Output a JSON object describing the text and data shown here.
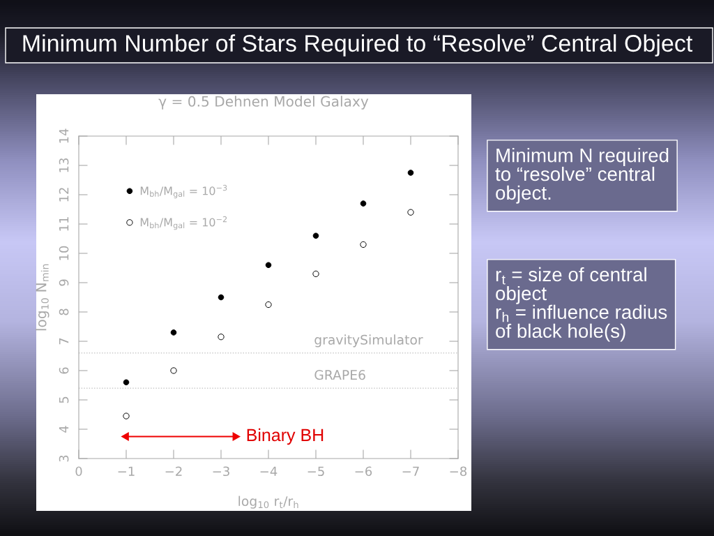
{
  "chart_data": {
    "type": "scatter",
    "title": "Minimum Number of Stars Required to “Resolve” Central Object",
    "subtitle": "γ = 0.5 Dehnen Model Galaxy",
    "xlabel": "log$_{10}$ r$_{t}$/r$_{h}$",
    "ylabel": "log$_{10}$ N$_{min}$",
    "x": [
      -1,
      -2,
      -3,
      -4,
      -5,
      -6,
      -7
    ],
    "series": [
      {
        "name": "M$_{bh}$/M$_{gal}$ = 10$^{−3}$",
        "color": "#000000",
        "marker": "circle",
        "values": [
          5.6,
          7.3,
          8.5,
          9.6,
          10.6,
          11.7,
          12.75
        ]
      },
      {
        "name": "M$_{bh}$/M$_{gal}$ = 10$^{−2}$",
        "color": "#000000",
        "marker": "circle-open",
        "values": [
          4.45,
          6.0,
          7.15,
          8.25,
          9.3,
          10.3,
          11.4
        ]
      },
      {
        "type": "line",
        "color": "#ee0000",
        "marker": "triangle",
        "x": [
          -1,
          -3.3
        ],
        "values": [
          3.75,
          3.75
        ]
      }
    ],
    "xlim": [
      0,
      -8
    ],
    "xticks": [
      0,
      {
        "value": -1,
        "label": "−1"
      },
      {
        "value": -2,
        "label": "−2"
      },
      {
        "value": -3,
        "label": "−3"
      },
      {
        "value": -4,
        "label": "−4"
      },
      {
        "value": -5,
        "label": "−5"
      },
      {
        "value": -6,
        "label": "−6"
      },
      {
        "value": -7,
        "label": "−7"
      },
      {
        "value": -8,
        "label": "−8"
      }
    ],
    "ylim": [
      3,
      14
    ],
    "yticks": [
      3,
      4,
      5,
      6,
      7,
      8,
      9,
      10,
      11,
      12,
      13,
      14
    ],
    "ref_lines": [
      {
        "axis": "y",
        "value": 6.6,
        "label": "gravitySimulator",
        "color": "#c8c8c8",
        "line_style": "dotted"
      },
      {
        "axis": "y",
        "value": 5.4,
        "label": "GRAPE6",
        "color": "#c8c8c8",
        "line_style": "dotted"
      }
    ],
    "annotations": [
      {
        "text": "Binary BH",
        "x": -3.3,
        "y": 3.75
      },
      "Minimum N required\nto “resolve” central\nobject.",
      "r$_{t}$ = size of central\nobject\nr$_{h}$ = influence radius\nof black hole(s)"
    ],
    "legend": "top left"
  }
}
